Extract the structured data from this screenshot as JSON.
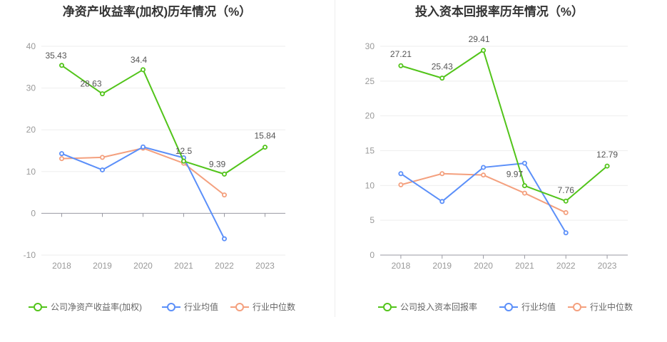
{
  "colors": {
    "company": "#52c41a",
    "avg": "#5b8ff9",
    "median": "#f4a07e",
    "axis": "#999999",
    "grid": "#eeeeee"
  },
  "chart_data": [
    {
      "type": "line",
      "title": "净资产收益率(加权)历年情况（%）",
      "categories": [
        "2018",
        "2019",
        "2020",
        "2021",
        "2022",
        "2023"
      ],
      "ylim": [
        -10,
        40
      ],
      "yticks": [
        -10,
        0,
        10,
        20,
        30,
        40
      ],
      "grid": true,
      "legend_position": "bottom",
      "series": [
        {
          "name": "公司净资产收益率(加权)",
          "key": "company",
          "values": [
            35.43,
            28.63,
            34.4,
            12.5,
            9.39,
            15.84
          ],
          "labels": [
            "35.43",
            "28.63",
            "34.4",
            "12.5",
            "9.39",
            "15.84"
          ]
        },
        {
          "name": "行业均值",
          "key": "avg",
          "values": [
            14.3,
            10.4,
            15.9,
            13.3,
            -6.1,
            null
          ]
        },
        {
          "name": "行业中位数",
          "key": "median",
          "values": [
            13.1,
            13.4,
            15.6,
            12.0,
            4.4,
            null
          ]
        }
      ]
    },
    {
      "type": "line",
      "title": "投入资本回报率历年情况（%）",
      "categories": [
        "2018",
        "2019",
        "2020",
        "2021",
        "2022",
        "2023"
      ],
      "ylim": [
        0,
        30
      ],
      "yticks": [
        0,
        5,
        10,
        15,
        20,
        25,
        30
      ],
      "grid": true,
      "legend_position": "bottom",
      "series": [
        {
          "name": "公司投入资本回报率",
          "key": "company",
          "values": [
            27.21,
            25.43,
            29.41,
            9.97,
            7.76,
            12.79
          ],
          "labels": [
            "27.21",
            "25.43",
            "29.41",
            "9.97",
            "7.76",
            "12.79"
          ]
        },
        {
          "name": "行业均值",
          "key": "avg",
          "values": [
            11.7,
            7.7,
            12.6,
            13.2,
            3.2,
            null
          ]
        },
        {
          "name": "行业中位数",
          "key": "median",
          "values": [
            10.1,
            11.7,
            11.5,
            8.9,
            6.1,
            null
          ]
        }
      ]
    }
  ]
}
